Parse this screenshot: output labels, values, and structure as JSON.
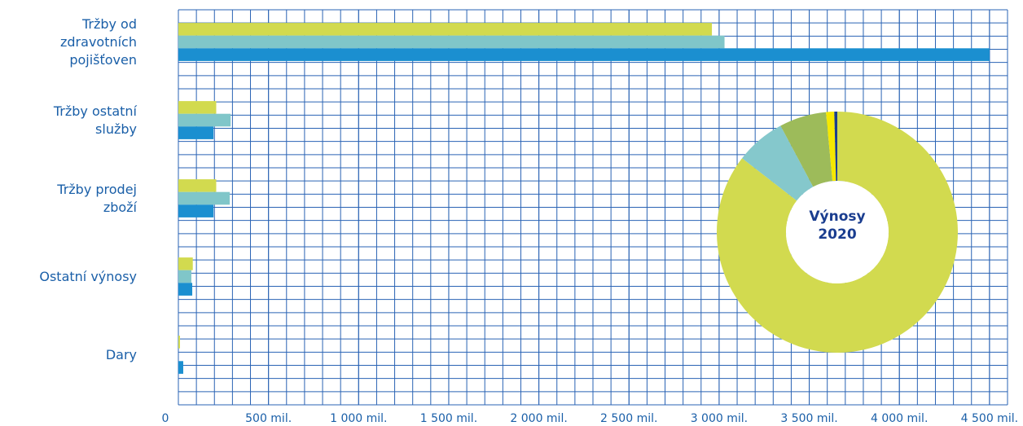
{
  "chart_data": [
    {
      "type": "bar",
      "orientation": "horizontal",
      "categories": [
        "Tržby od\nzdravotních\npojišťoven",
        "Tržby ostatní\nslužby",
        "Tržby prodej\nzboží",
        "Ostatní výnosy",
        "Dary"
      ],
      "series": [
        {
          "color": "#d2da4f",
          "values": [
            2960,
            210,
            210,
            80,
            9
          ]
        },
        {
          "color": "#80c6c9",
          "values": [
            3030,
            290,
            285,
            72,
            null
          ]
        },
        {
          "color": "#1b8fd0",
          "values": [
            4500,
            195,
            195,
            77,
            27
          ]
        }
      ],
      "xlim": [
        0,
        4600
      ],
      "xticks": [
        0,
        {
          "value": 500,
          "label": "500 mil."
        },
        {
          "value": 1000,
          "label": "1 000 mil."
        },
        {
          "value": 1500,
          "label": "1 500 mil."
        },
        {
          "value": 2000,
          "label": "2 000 mil."
        },
        {
          "value": 2500,
          "label": "2 500 mil."
        },
        {
          "value": 3000,
          "label": "3 000 mil."
        },
        {
          "value": 3500,
          "label": "3 500 mil."
        },
        {
          "value": 4000,
          "label": "4 000 mil."
        },
        {
          "value": 4500,
          "label": "4 500 mil."
        }
      ],
      "grid": true
    },
    {
      "type": "pie",
      "donut": true,
      "title": "Výnosy 2020",
      "values": [
        85.5,
        6.7,
        6.3,
        1.1,
        0.4
      ],
      "colors": [
        "#d2da4f",
        "#85c8cc",
        "#9dbb5a",
        "#f5e800",
        "#1a3d8f"
      ]
    }
  ]
}
